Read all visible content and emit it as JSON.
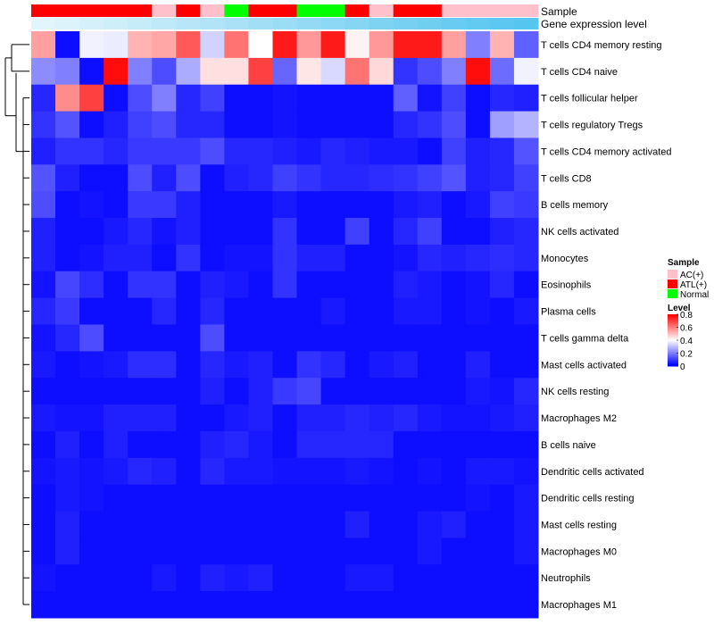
{
  "chart_data": {
    "type": "heatmap",
    "annotation_tracks": {
      "sample_title": "Sample",
      "expression_title": "Gene expression level",
      "sample_groups": [
        "ATL(+)",
        "ATL(+)",
        "ATL(+)",
        "ATL(+)",
        "ATL(+)",
        "AC(+)",
        "ATL(+)",
        "AC(+)",
        "Normal",
        "ATL(+)",
        "ATL(+)",
        "Normal",
        "Normal",
        "ATL(+)",
        "AC(+)",
        "ATL(+)",
        "ATL(+)",
        "AC(+)",
        "AC(+)",
        "AC(+)",
        "AC(+)"
      ],
      "expression_level": [
        0.02,
        0.07,
        0.12,
        0.17,
        0.22,
        0.27,
        0.32,
        0.37,
        0.42,
        0.47,
        0.52,
        0.57,
        0.62,
        0.67,
        0.72,
        0.77,
        0.82,
        0.87,
        0.92,
        0.96,
        1.0
      ]
    },
    "rows": [
      "T cells CD4 memory resting",
      "T cells CD4 naive",
      "T cells follicular helper",
      "T cells regulatory  Tregs",
      "T cells CD4 memory activated",
      "T cells CD8",
      "B cells memory",
      "NK cells activated",
      "Monocytes",
      "Eosinophils",
      "Plasma cells",
      "T cells gamma delta",
      "Mast cells activated",
      "NK cells resting",
      "Macrophages M2",
      "B cells naive",
      "Dendritic cells activated",
      "Dendritic cells resting",
      "Mast cells resting",
      "Macrophages M0",
      "Neutrophils",
      "Macrophages M1"
    ],
    "values": [
      [
        0.55,
        0.02,
        0.38,
        0.37,
        0.52,
        0.54,
        0.66,
        0.33,
        0.62,
        0.4,
        0.76,
        0.56,
        0.76,
        0.42,
        0.56,
        0.76,
        0.76,
        0.55,
        0.2,
        0.52,
        0.15
      ],
      [
        0.22,
        0.2,
        0.02,
        0.78,
        0.2,
        0.12,
        0.27,
        0.45,
        0.45,
        0.7,
        0.16,
        0.44,
        0.34,
        0.62,
        0.46,
        0.08,
        0.12,
        0.2,
        0.78,
        0.17,
        0.38
      ],
      [
        0.06,
        0.58,
        0.7,
        0.02,
        0.12,
        0.2,
        0.06,
        0.1,
        0.02,
        0.02,
        0.03,
        0.02,
        0.02,
        0.02,
        0.02,
        0.15,
        0.03,
        0.1,
        0.02,
        0.06,
        0.05
      ],
      [
        0.08,
        0.13,
        0.02,
        0.05,
        0.1,
        0.12,
        0.06,
        0.06,
        0.02,
        0.02,
        0.03,
        0.02,
        0.02,
        0.02,
        0.02,
        0.06,
        0.08,
        0.12,
        0.02,
        0.25,
        0.28
      ],
      [
        0.05,
        0.08,
        0.08,
        0.06,
        0.09,
        0.09,
        0.09,
        0.12,
        0.06,
        0.06,
        0.05,
        0.04,
        0.06,
        0.05,
        0.04,
        0.04,
        0.02,
        0.1,
        0.05,
        0.06,
        0.13
      ],
      [
        0.13,
        0.05,
        0.02,
        0.02,
        0.12,
        0.05,
        0.12,
        0.02,
        0.05,
        0.06,
        0.1,
        0.08,
        0.06,
        0.06,
        0.07,
        0.08,
        0.1,
        0.13,
        0.05,
        0.06,
        0.1
      ],
      [
        0.12,
        0.02,
        0.03,
        0.02,
        0.09,
        0.09,
        0.05,
        0.02,
        0.02,
        0.02,
        0.04,
        0.02,
        0.02,
        0.02,
        0.02,
        0.04,
        0.05,
        0.02,
        0.04,
        0.1,
        0.09
      ],
      [
        0.05,
        0.02,
        0.02,
        0.04,
        0.06,
        0.03,
        0.05,
        0.02,
        0.02,
        0.02,
        0.08,
        0.02,
        0.02,
        0.1,
        0.02,
        0.06,
        0.1,
        0.02,
        0.02,
        0.05,
        0.06
      ],
      [
        0.05,
        0.02,
        0.03,
        0.05,
        0.05,
        0.02,
        0.08,
        0.02,
        0.03,
        0.03,
        0.08,
        0.05,
        0.05,
        0.02,
        0.02,
        0.03,
        0.06,
        0.05,
        0.06,
        0.07,
        0.06
      ],
      [
        0.03,
        0.11,
        0.07,
        0.02,
        0.08,
        0.08,
        0.02,
        0.05,
        0.04,
        0.02,
        0.08,
        0.02,
        0.02,
        0.02,
        0.02,
        0.05,
        0.04,
        0.02,
        0.03,
        0.06,
        0.02
      ],
      [
        0.06,
        0.09,
        0.02,
        0.02,
        0.02,
        0.06,
        0.02,
        0.06,
        0.02,
        0.02,
        0.02,
        0.02,
        0.04,
        0.02,
        0.02,
        0.04,
        0.04,
        0.02,
        0.03,
        0.02,
        0.04
      ],
      [
        0.03,
        0.06,
        0.12,
        0.02,
        0.02,
        0.02,
        0.02,
        0.12,
        0.02,
        0.02,
        0.02,
        0.02,
        0.02,
        0.02,
        0.02,
        0.02,
        0.02,
        0.02,
        0.02,
        0.02,
        0.02
      ],
      [
        0.04,
        0.02,
        0.03,
        0.04,
        0.07,
        0.07,
        0.02,
        0.06,
        0.04,
        0.05,
        0.02,
        0.08,
        0.06,
        0.02,
        0.04,
        0.05,
        0.02,
        0.02,
        0.05,
        0.02,
        0.02
      ],
      [
        0.02,
        0.02,
        0.02,
        0.02,
        0.02,
        0.02,
        0.02,
        0.05,
        0.02,
        0.05,
        0.09,
        0.11,
        0.02,
        0.02,
        0.02,
        0.02,
        0.02,
        0.02,
        0.04,
        0.03,
        0.06
      ],
      [
        0.04,
        0.03,
        0.03,
        0.05,
        0.05,
        0.05,
        0.02,
        0.02,
        0.04,
        0.05,
        0.02,
        0.05,
        0.05,
        0.06,
        0.05,
        0.06,
        0.04,
        0.03,
        0.03,
        0.04,
        0.05
      ],
      [
        0.02,
        0.05,
        0.02,
        0.05,
        0.02,
        0.02,
        0.02,
        0.05,
        0.06,
        0.04,
        0.02,
        0.06,
        0.06,
        0.06,
        0.06,
        0.02,
        0.02,
        0.02,
        0.02,
        0.02,
        0.02
      ],
      [
        0.03,
        0.04,
        0.03,
        0.04,
        0.06,
        0.05,
        0.02,
        0.06,
        0.04,
        0.04,
        0.03,
        0.03,
        0.03,
        0.04,
        0.03,
        0.02,
        0.03,
        0.02,
        0.04,
        0.04,
        0.03
      ],
      [
        0.02,
        0.04,
        0.03,
        0.02,
        0.02,
        0.02,
        0.02,
        0.02,
        0.02,
        0.02,
        0.02,
        0.02,
        0.02,
        0.02,
        0.02,
        0.02,
        0.02,
        0.02,
        0.03,
        0.02,
        0.04
      ],
      [
        0.02,
        0.05,
        0.02,
        0.02,
        0.02,
        0.02,
        0.02,
        0.02,
        0.02,
        0.02,
        0.02,
        0.02,
        0.02,
        0.05,
        0.02,
        0.02,
        0.04,
        0.05,
        0.02,
        0.02,
        0.04
      ],
      [
        0.02,
        0.05,
        0.02,
        0.02,
        0.02,
        0.02,
        0.02,
        0.02,
        0.02,
        0.02,
        0.02,
        0.02,
        0.02,
        0.02,
        0.02,
        0.02,
        0.04,
        0.02,
        0.02,
        0.02,
        0.04
      ],
      [
        0.03,
        0.02,
        0.02,
        0.02,
        0.02,
        0.04,
        0.02,
        0.05,
        0.04,
        0.05,
        0.02,
        0.02,
        0.02,
        0.04,
        0.04,
        0.02,
        0.02,
        0.02,
        0.02,
        0.02,
        0.02
      ],
      [
        0.02,
        0.02,
        0.02,
        0.02,
        0.02,
        0.02,
        0.02,
        0.02,
        0.02,
        0.02,
        0.02,
        0.02,
        0.02,
        0.02,
        0.02,
        0.02,
        0.02,
        0.02,
        0.02,
        0.02,
        0.02
      ]
    ],
    "legend": {
      "sample_title": "Sample",
      "sample_items": [
        {
          "label": "AC(+)",
          "color": "#ffc0cb"
        },
        {
          "label": "ATL(+)",
          "color": "#ff0000"
        },
        {
          "label": "Normal",
          "color": "#00ff00"
        }
      ],
      "level_title": "Level",
      "level_ticks": [
        "0.8",
        "0.6",
        "0.4",
        "0.2",
        "0"
      ],
      "level_tick_values": [
        0.8,
        0.6,
        0.4,
        0.2,
        0
      ]
    },
    "color_scale": {
      "low": "#0000ff",
      "mid": "#ffffff",
      "high": "#ff0000",
      "min": 0,
      "mid_value": 0.4,
      "max": 0.8
    },
    "expression_colors": {
      "low": "#e6f6fc",
      "high": "#56c5ef"
    }
  }
}
